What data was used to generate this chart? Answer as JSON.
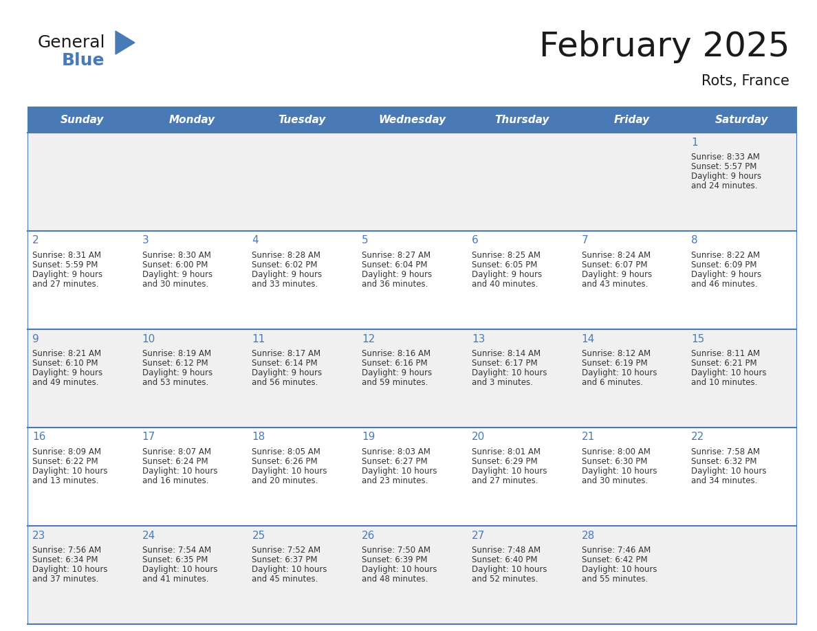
{
  "title": "February 2025",
  "subtitle": "Rots, France",
  "days_of_week": [
    "Sunday",
    "Monday",
    "Tuesday",
    "Wednesday",
    "Thursday",
    "Friday",
    "Saturday"
  ],
  "header_bg": "#4a7ab5",
  "header_text": "#ffffff",
  "row_bg_odd": "#f0f0f0",
  "row_bg_even": "#ffffff",
  "border_color": "#4a7ab5",
  "day_num_color": "#4a7ab5",
  "text_color": "#333333",
  "calendar_data": [
    [
      null,
      null,
      null,
      null,
      null,
      null,
      {
        "day": 1,
        "sunrise": "8:33 AM",
        "sunset": "5:57 PM",
        "daylight": "9 hours and 24 minutes"
      }
    ],
    [
      {
        "day": 2,
        "sunrise": "8:31 AM",
        "sunset": "5:59 PM",
        "daylight": "9 hours and 27 minutes"
      },
      {
        "day": 3,
        "sunrise": "8:30 AM",
        "sunset": "6:00 PM",
        "daylight": "9 hours and 30 minutes"
      },
      {
        "day": 4,
        "sunrise": "8:28 AM",
        "sunset": "6:02 PM",
        "daylight": "9 hours and 33 minutes"
      },
      {
        "day": 5,
        "sunrise": "8:27 AM",
        "sunset": "6:04 PM",
        "daylight": "9 hours and 36 minutes"
      },
      {
        "day": 6,
        "sunrise": "8:25 AM",
        "sunset": "6:05 PM",
        "daylight": "9 hours and 40 minutes"
      },
      {
        "day": 7,
        "sunrise": "8:24 AM",
        "sunset": "6:07 PM",
        "daylight": "9 hours and 43 minutes"
      },
      {
        "day": 8,
        "sunrise": "8:22 AM",
        "sunset": "6:09 PM",
        "daylight": "9 hours and 46 minutes"
      }
    ],
    [
      {
        "day": 9,
        "sunrise": "8:21 AM",
        "sunset": "6:10 PM",
        "daylight": "9 hours and 49 minutes"
      },
      {
        "day": 10,
        "sunrise": "8:19 AM",
        "sunset": "6:12 PM",
        "daylight": "9 hours and 53 minutes"
      },
      {
        "day": 11,
        "sunrise": "8:17 AM",
        "sunset": "6:14 PM",
        "daylight": "9 hours and 56 minutes"
      },
      {
        "day": 12,
        "sunrise": "8:16 AM",
        "sunset": "6:16 PM",
        "daylight": "9 hours and 59 minutes"
      },
      {
        "day": 13,
        "sunrise": "8:14 AM",
        "sunset": "6:17 PM",
        "daylight": "10 hours and 3 minutes"
      },
      {
        "day": 14,
        "sunrise": "8:12 AM",
        "sunset": "6:19 PM",
        "daylight": "10 hours and 6 minutes"
      },
      {
        "day": 15,
        "sunrise": "8:11 AM",
        "sunset": "6:21 PM",
        "daylight": "10 hours and 10 minutes"
      }
    ],
    [
      {
        "day": 16,
        "sunrise": "8:09 AM",
        "sunset": "6:22 PM",
        "daylight": "10 hours and 13 minutes"
      },
      {
        "day": 17,
        "sunrise": "8:07 AM",
        "sunset": "6:24 PM",
        "daylight": "10 hours and 16 minutes"
      },
      {
        "day": 18,
        "sunrise": "8:05 AM",
        "sunset": "6:26 PM",
        "daylight": "10 hours and 20 minutes"
      },
      {
        "day": 19,
        "sunrise": "8:03 AM",
        "sunset": "6:27 PM",
        "daylight": "10 hours and 23 minutes"
      },
      {
        "day": 20,
        "sunrise": "8:01 AM",
        "sunset": "6:29 PM",
        "daylight": "10 hours and 27 minutes"
      },
      {
        "day": 21,
        "sunrise": "8:00 AM",
        "sunset": "6:30 PM",
        "daylight": "10 hours and 30 minutes"
      },
      {
        "day": 22,
        "sunrise": "7:58 AM",
        "sunset": "6:32 PM",
        "daylight": "10 hours and 34 minutes"
      }
    ],
    [
      {
        "day": 23,
        "sunrise": "7:56 AM",
        "sunset": "6:34 PM",
        "daylight": "10 hours and 37 minutes"
      },
      {
        "day": 24,
        "sunrise": "7:54 AM",
        "sunset": "6:35 PM",
        "daylight": "10 hours and 41 minutes"
      },
      {
        "day": 25,
        "sunrise": "7:52 AM",
        "sunset": "6:37 PM",
        "daylight": "10 hours and 45 minutes"
      },
      {
        "day": 26,
        "sunrise": "7:50 AM",
        "sunset": "6:39 PM",
        "daylight": "10 hours and 48 minutes"
      },
      {
        "day": 27,
        "sunrise": "7:48 AM",
        "sunset": "6:40 PM",
        "daylight": "10 hours and 52 minutes"
      },
      {
        "day": 28,
        "sunrise": "7:46 AM",
        "sunset": "6:42 PM",
        "daylight": "10 hours and 55 minutes"
      },
      null
    ]
  ]
}
